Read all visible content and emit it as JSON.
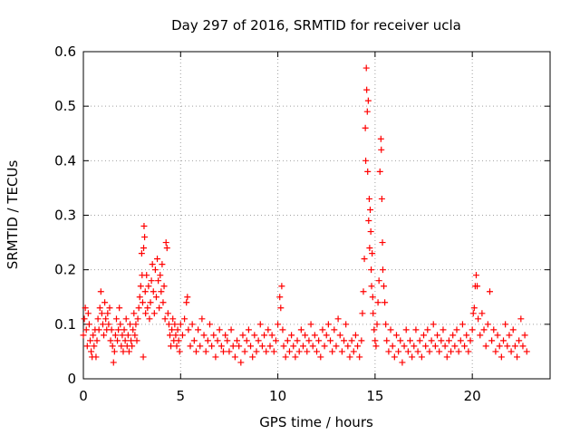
{
  "chart_data": {
    "type": "scatter",
    "title": "Day 297 of 2016, SRMTID for receiver ucla",
    "xlabel": "GPS time / hours",
    "ylabel": "SRMTID / TECUs",
    "xlim": [
      0,
      24
    ],
    "ylim": [
      0,
      0.6
    ],
    "xticks": [
      0,
      5,
      10,
      15,
      20
    ],
    "xtick_labels": [
      "0",
      "5",
      "10",
      "15",
      "20"
    ],
    "yticks": [
      0,
      0.1,
      0.2,
      0.3,
      0.4,
      0.5,
      0.6
    ],
    "ytick_labels": [
      "0",
      "0.1",
      "0.2",
      "0.3",
      "0.4",
      "0.5",
      "0.6"
    ],
    "grid": true,
    "marker": "+",
    "series": [
      {
        "name": "SRMTID",
        "color": "#ff0000",
        "points": [
          [
            0.0,
            0.08
          ],
          [
            0.05,
            0.11
          ],
          [
            0.1,
            0.13
          ],
          [
            0.15,
            0.09
          ],
          [
            0.2,
            0.06
          ],
          [
            0.25,
            0.12
          ],
          [
            0.3,
            0.1
          ],
          [
            0.35,
            0.07
          ],
          [
            0.4,
            0.05
          ],
          [
            0.45,
            0.04
          ],
          [
            0.5,
            0.08
          ],
          [
            0.55,
            0.06
          ],
          [
            0.6,
            0.09
          ],
          [
            0.65,
            0.04
          ],
          [
            0.7,
            0.07
          ],
          [
            0.75,
            0.11
          ],
          [
            0.8,
            0.09
          ],
          [
            0.85,
            0.13
          ],
          [
            0.9,
            0.16
          ],
          [
            0.95,
            0.12
          ],
          [
            1.0,
            0.1
          ],
          [
            1.05,
            0.08
          ],
          [
            1.1,
            0.14
          ],
          [
            1.15,
            0.11
          ],
          [
            1.2,
            0.09
          ],
          [
            1.25,
            0.12
          ],
          [
            1.3,
            0.1
          ],
          [
            1.35,
            0.13
          ],
          [
            1.4,
            0.07
          ],
          [
            1.45,
            0.09
          ],
          [
            1.5,
            0.06
          ],
          [
            1.55,
            0.03
          ],
          [
            1.6,
            0.05
          ],
          [
            1.65,
            0.08
          ],
          [
            1.7,
            0.11
          ],
          [
            1.75,
            0.07
          ],
          [
            1.8,
            0.09
          ],
          [
            1.85,
            0.13
          ],
          [
            1.9,
            0.1
          ],
          [
            1.95,
            0.06
          ],
          [
            2.0,
            0.08
          ],
          [
            2.05,
            0.05
          ],
          [
            2.1,
            0.09
          ],
          [
            2.15,
            0.07
          ],
          [
            2.2,
            0.11
          ],
          [
            2.25,
            0.06
          ],
          [
            2.3,
            0.08
          ],
          [
            2.35,
            0.05
          ],
          [
            2.4,
            0.1
          ],
          [
            2.45,
            0.07
          ],
          [
            2.5,
            0.06
          ],
          [
            2.55,
            0.09
          ],
          [
            2.6,
            0.12
          ],
          [
            2.65,
            0.08
          ],
          [
            2.7,
            0.1
          ],
          [
            2.75,
            0.07
          ],
          [
            2.8,
            0.11
          ],
          [
            2.85,
            0.13
          ],
          [
            2.9,
            0.15
          ],
          [
            2.95,
            0.17
          ],
          [
            3.0,
            0.23
          ],
          [
            3.02,
            0.19
          ],
          [
            3.05,
            0.14
          ],
          [
            3.08,
            0.04
          ],
          [
            3.1,
            0.24
          ],
          [
            3.12,
            0.28
          ],
          [
            3.15,
            0.26
          ],
          [
            3.18,
            0.16
          ],
          [
            3.2,
            0.12
          ],
          [
            3.25,
            0.19
          ],
          [
            3.3,
            0.13
          ],
          [
            3.35,
            0.17
          ],
          [
            3.4,
            0.11
          ],
          [
            3.45,
            0.14
          ],
          [
            3.5,
            0.18
          ],
          [
            3.55,
            0.21
          ],
          [
            3.6,
            0.16
          ],
          [
            3.65,
            0.12
          ],
          [
            3.7,
            0.2
          ],
          [
            3.75,
            0.15
          ],
          [
            3.8,
            0.22
          ],
          [
            3.85,
            0.18
          ],
          [
            3.9,
            0.13
          ],
          [
            3.95,
            0.19
          ],
          [
            4.0,
            0.16
          ],
          [
            4.05,
            0.21
          ],
          [
            4.1,
            0.14
          ],
          [
            4.15,
            0.17
          ],
          [
            4.2,
            0.11
          ],
          [
            4.25,
            0.25
          ],
          [
            4.3,
            0.24
          ],
          [
            4.35,
            0.12
          ],
          [
            4.4,
            0.1
          ],
          [
            4.45,
            0.08
          ],
          [
            4.5,
            0.06
          ],
          [
            4.55,
            0.09
          ],
          [
            4.6,
            0.11
          ],
          [
            4.65,
            0.07
          ],
          [
            4.7,
            0.1
          ],
          [
            4.75,
            0.08
          ],
          [
            4.8,
            0.06
          ],
          [
            4.85,
            0.09
          ],
          [
            4.9,
            0.07
          ],
          [
            4.95,
            0.05
          ],
          [
            5.0,
            0.1
          ],
          [
            5.1,
            0.08
          ],
          [
            5.2,
            0.11
          ],
          [
            5.3,
            0.14
          ],
          [
            5.35,
            0.15
          ],
          [
            5.4,
            0.09
          ],
          [
            5.5,
            0.06
          ],
          [
            5.6,
            0.1
          ],
          [
            5.7,
            0.07
          ],
          [
            5.8,
            0.05
          ],
          [
            5.9,
            0.09
          ],
          [
            6.0,
            0.06
          ],
          [
            6.1,
            0.11
          ],
          [
            6.2,
            0.08
          ],
          [
            6.3,
            0.05
          ],
          [
            6.4,
            0.07
          ],
          [
            6.5,
            0.1
          ],
          [
            6.6,
            0.06
          ],
          [
            6.7,
            0.08
          ],
          [
            6.8,
            0.04
          ],
          [
            6.9,
            0.07
          ],
          [
            7.0,
            0.09
          ],
          [
            7.1,
            0.06
          ],
          [
            7.2,
            0.05
          ],
          [
            7.3,
            0.08
          ],
          [
            7.4,
            0.07
          ],
          [
            7.5,
            0.05
          ],
          [
            7.6,
            0.09
          ],
          [
            7.7,
            0.06
          ],
          [
            7.8,
            0.04
          ],
          [
            7.9,
            0.07
          ],
          [
            8.0,
            0.06
          ],
          [
            8.1,
            0.03
          ],
          [
            8.2,
            0.08
          ],
          [
            8.3,
            0.05
          ],
          [
            8.4,
            0.07
          ],
          [
            8.5,
            0.09
          ],
          [
            8.6,
            0.06
          ],
          [
            8.7,
            0.04
          ],
          [
            8.8,
            0.08
          ],
          [
            8.9,
            0.05
          ],
          [
            9.0,
            0.07
          ],
          [
            9.1,
            0.1
          ],
          [
            9.2,
            0.06
          ],
          [
            9.3,
            0.08
          ],
          [
            9.4,
            0.05
          ],
          [
            9.5,
            0.09
          ],
          [
            9.6,
            0.06
          ],
          [
            9.7,
            0.08
          ],
          [
            9.8,
            0.05
          ],
          [
            9.9,
            0.07
          ],
          [
            10.0,
            0.1
          ],
          [
            10.1,
            0.15
          ],
          [
            10.15,
            0.13
          ],
          [
            10.2,
            0.17
          ],
          [
            10.25,
            0.09
          ],
          [
            10.3,
            0.06
          ],
          [
            10.4,
            0.04
          ],
          [
            10.5,
            0.07
          ],
          [
            10.6,
            0.05
          ],
          [
            10.7,
            0.08
          ],
          [
            10.8,
            0.06
          ],
          [
            10.9,
            0.04
          ],
          [
            11.0,
            0.07
          ],
          [
            11.1,
            0.05
          ],
          [
            11.2,
            0.09
          ],
          [
            11.3,
            0.06
          ],
          [
            11.4,
            0.08
          ],
          [
            11.5,
            0.05
          ],
          [
            11.6,
            0.07
          ],
          [
            11.7,
            0.1
          ],
          [
            11.8,
            0.06
          ],
          [
            11.9,
            0.08
          ],
          [
            12.0,
            0.05
          ],
          [
            12.1,
            0.07
          ],
          [
            12.2,
            0.04
          ],
          [
            12.3,
            0.09
          ],
          [
            12.4,
            0.06
          ],
          [
            12.5,
            0.08
          ],
          [
            12.6,
            0.1
          ],
          [
            12.7,
            0.07
          ],
          [
            12.8,
            0.05
          ],
          [
            12.9,
            0.09
          ],
          [
            13.0,
            0.06
          ],
          [
            13.1,
            0.11
          ],
          [
            13.2,
            0.08
          ],
          [
            13.3,
            0.05
          ],
          [
            13.4,
            0.07
          ],
          [
            13.5,
            0.1
          ],
          [
            13.6,
            0.06
          ],
          [
            13.7,
            0.04
          ],
          [
            13.8,
            0.07
          ],
          [
            13.9,
            0.05
          ],
          [
            14.0,
            0.08
          ],
          [
            14.1,
            0.06
          ],
          [
            14.2,
            0.04
          ],
          [
            14.3,
            0.07
          ],
          [
            14.35,
            0.12
          ],
          [
            14.4,
            0.16
          ],
          [
            14.45,
            0.22
          ],
          [
            14.5,
            0.46
          ],
          [
            14.52,
            0.4
          ],
          [
            14.55,
            0.57
          ],
          [
            14.57,
            0.53
          ],
          [
            14.6,
            0.49
          ],
          [
            14.62,
            0.38
          ],
          [
            14.65,
            0.51
          ],
          [
            14.67,
            0.29
          ],
          [
            14.7,
            0.33
          ],
          [
            14.72,
            0.24
          ],
          [
            14.75,
            0.31
          ],
          [
            14.78,
            0.27
          ],
          [
            14.8,
            0.2
          ],
          [
            14.82,
            0.17
          ],
          [
            14.85,
            0.23
          ],
          [
            14.88,
            0.15
          ],
          [
            14.9,
            0.12
          ],
          [
            14.95,
            0.09
          ],
          [
            15.0,
            0.07
          ],
          [
            15.05,
            0.06
          ],
          [
            15.1,
            0.1
          ],
          [
            15.15,
            0.14
          ],
          [
            15.2,
            0.18
          ],
          [
            15.25,
            0.38
          ],
          [
            15.3,
            0.44
          ],
          [
            15.32,
            0.42
          ],
          [
            15.35,
            0.33
          ],
          [
            15.38,
            0.25
          ],
          [
            15.4,
            0.2
          ],
          [
            15.45,
            0.17
          ],
          [
            15.5,
            0.14
          ],
          [
            15.55,
            0.1
          ],
          [
            15.6,
            0.07
          ],
          [
            15.7,
            0.05
          ],
          [
            15.8,
            0.09
          ],
          [
            15.9,
            0.06
          ],
          [
            16.0,
            0.04
          ],
          [
            16.1,
            0.08
          ],
          [
            16.2,
            0.05
          ],
          [
            16.3,
            0.07
          ],
          [
            16.4,
            0.03
          ],
          [
            16.5,
            0.06
          ],
          [
            16.6,
            0.09
          ],
          [
            16.7,
            0.05
          ],
          [
            16.8,
            0.07
          ],
          [
            16.9,
            0.04
          ],
          [
            17.0,
            0.06
          ],
          [
            17.1,
            0.09
          ],
          [
            17.2,
            0.05
          ],
          [
            17.3,
            0.07
          ],
          [
            17.4,
            0.04
          ],
          [
            17.5,
            0.08
          ],
          [
            17.6,
            0.06
          ],
          [
            17.7,
            0.09
          ],
          [
            17.8,
            0.05
          ],
          [
            17.9,
            0.07
          ],
          [
            18.0,
            0.1
          ],
          [
            18.1,
            0.06
          ],
          [
            18.2,
            0.08
          ],
          [
            18.3,
            0.05
          ],
          [
            18.4,
            0.07
          ],
          [
            18.5,
            0.09
          ],
          [
            18.6,
            0.06
          ],
          [
            18.7,
            0.04
          ],
          [
            18.8,
            0.07
          ],
          [
            18.9,
            0.05
          ],
          [
            19.0,
            0.08
          ],
          [
            19.1,
            0.06
          ],
          [
            19.2,
            0.09
          ],
          [
            19.3,
            0.05
          ],
          [
            19.4,
            0.07
          ],
          [
            19.5,
            0.1
          ],
          [
            19.6,
            0.06
          ],
          [
            19.7,
            0.08
          ],
          [
            19.8,
            0.05
          ],
          [
            19.9,
            0.07
          ],
          [
            20.0,
            0.09
          ],
          [
            20.05,
            0.12
          ],
          [
            20.1,
            0.13
          ],
          [
            20.15,
            0.17
          ],
          [
            20.2,
            0.19
          ],
          [
            20.25,
            0.17
          ],
          [
            20.3,
            0.11
          ],
          [
            20.4,
            0.08
          ],
          [
            20.5,
            0.12
          ],
          [
            20.6,
            0.09
          ],
          [
            20.7,
            0.06
          ],
          [
            20.8,
            0.1
          ],
          [
            20.9,
            0.16
          ],
          [
            21.0,
            0.07
          ],
          [
            21.1,
            0.09
          ],
          [
            21.2,
            0.05
          ],
          [
            21.3,
            0.08
          ],
          [
            21.4,
            0.06
          ],
          [
            21.5,
            0.04
          ],
          [
            21.6,
            0.07
          ],
          [
            21.7,
            0.1
          ],
          [
            21.8,
            0.06
          ],
          [
            21.9,
            0.08
          ],
          [
            22.0,
            0.05
          ],
          [
            22.1,
            0.09
          ],
          [
            22.2,
            0.06
          ],
          [
            22.3,
            0.04
          ],
          [
            22.4,
            0.07
          ],
          [
            22.5,
            0.11
          ],
          [
            22.6,
            0.06
          ],
          [
            22.7,
            0.08
          ],
          [
            22.8,
            0.05
          ]
        ]
      }
    ]
  }
}
